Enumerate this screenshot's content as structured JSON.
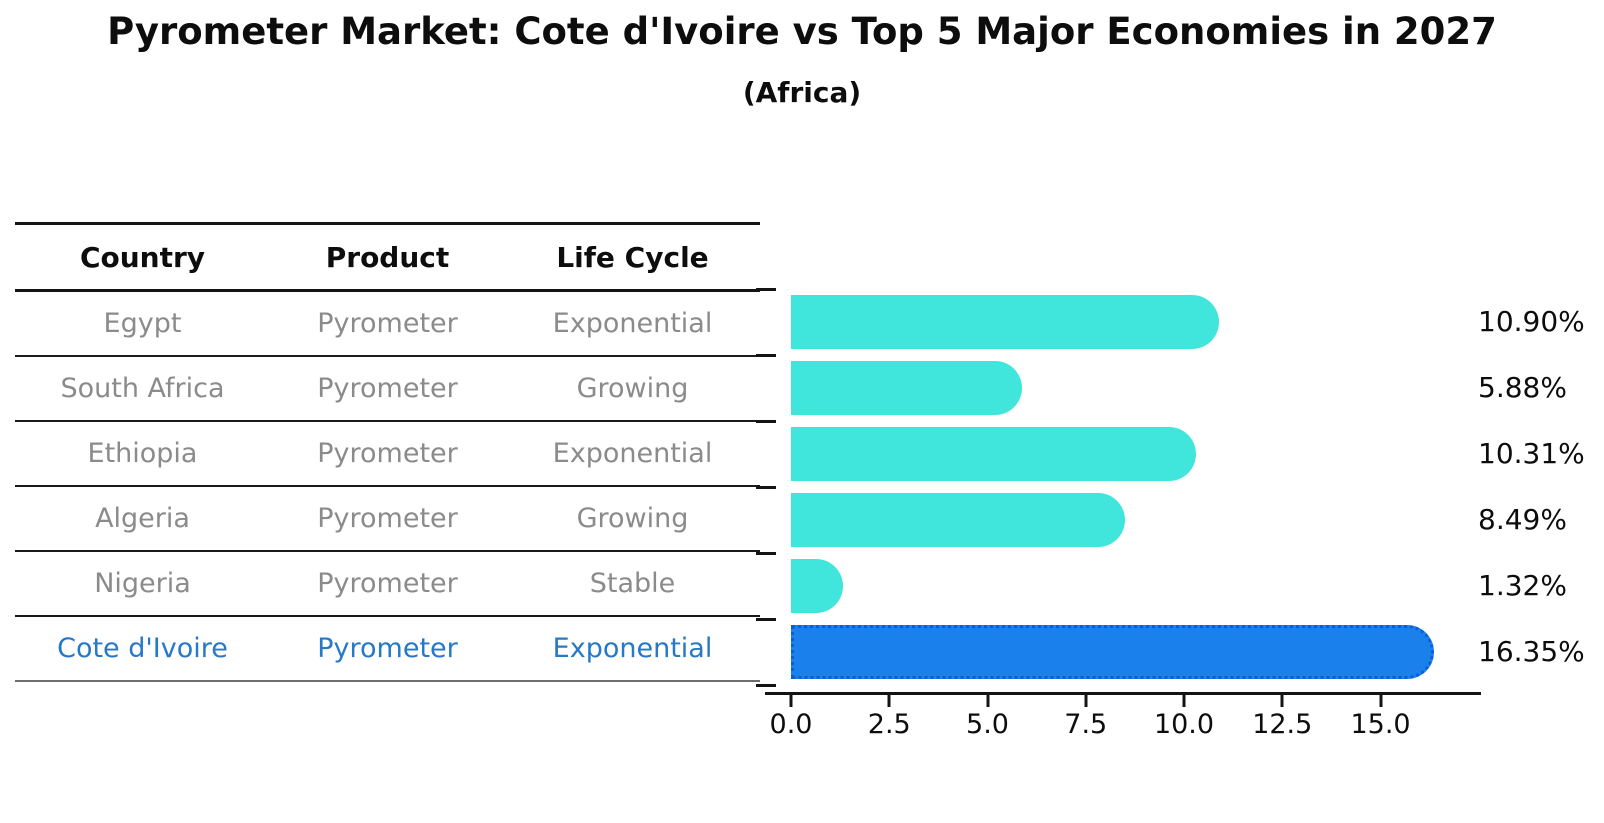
{
  "title": "Pyrometer Market: Cote d'Ivoire vs Top 5 Major Economies in 2027",
  "subtitle": "(Africa)",
  "table": {
    "headers": [
      "Country",
      "Product",
      "Life Cycle"
    ],
    "rows": [
      {
        "country": "Egypt",
        "product": "Pyrometer",
        "life_cycle": "Exponential",
        "highlight": false
      },
      {
        "country": "South Africa",
        "product": "Pyrometer",
        "life_cycle": "Growing",
        "highlight": false
      },
      {
        "country": "Ethiopia",
        "product": "Pyrometer",
        "life_cycle": "Exponential",
        "highlight": false
      },
      {
        "country": "Algeria",
        "product": "Pyrometer",
        "life_cycle": "Growing",
        "highlight": false
      },
      {
        "country": "Nigeria",
        "product": "Pyrometer",
        "life_cycle": "Stable",
        "highlight": false
      },
      {
        "country": "Cote d'Ivoire",
        "product": "Pyrometer",
        "life_cycle": "Exponential",
        "highlight": true
      }
    ]
  },
  "chart_data": {
    "type": "bar",
    "orientation": "horizontal",
    "categories": [
      "Egypt",
      "South Africa",
      "Ethiopia",
      "Algeria",
      "Nigeria",
      "Cote d'Ivoire"
    ],
    "values": [
      10.9,
      5.88,
      10.31,
      8.49,
      1.32,
      16.35
    ],
    "value_labels": [
      "10.90%",
      "5.88%",
      "10.31%",
      "8.49%",
      "1.32%",
      "16.35%"
    ],
    "xticks": [
      0.0,
      2.5,
      5.0,
      7.5,
      10.0,
      12.5,
      15.0
    ],
    "xtick_labels": [
      "0.0",
      "2.5",
      "5.0",
      "7.5",
      "10.0",
      "12.5",
      "15.0"
    ],
    "xlim": [
      0,
      17.2
    ],
    "grid": false,
    "legend": false,
    "bar_color": "#40E5DC",
    "highlight_index": 5,
    "highlight_color": "#1A80EC",
    "highlight_border_color": "#0C5FD2",
    "highlight_text_color": "#2579C8",
    "row_text_color": "#8B8B8B",
    "axis_color": "#141414"
  }
}
